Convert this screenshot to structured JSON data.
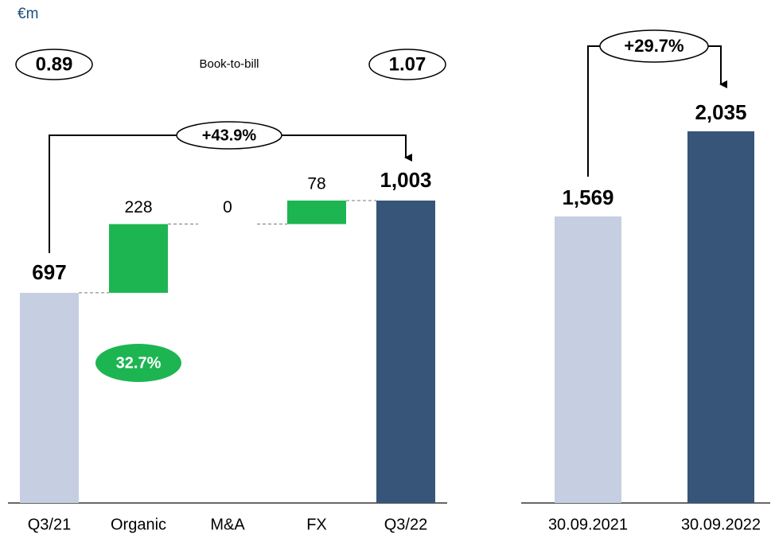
{
  "chart_data": [
    {
      "type": "waterfall",
      "unit": "€m",
      "book_to_bill": {
        "label": "Book-to-bill",
        "start": "0.89",
        "end": "1.07"
      },
      "growth_label": "+43.9%",
      "organic_growth_label": "32.7%",
      "categories": [
        "Q3/21",
        "Organic",
        "M&A",
        "FX",
        "Q3/22"
      ],
      "measure": [
        "absolute",
        "relative",
        "relative",
        "relative",
        "total"
      ],
      "values": [
        697,
        228,
        0,
        78,
        1003
      ],
      "value_labels": [
        "697",
        "228",
        "0",
        "78",
        "1,003"
      ],
      "colors": [
        "#c5cfe1",
        "#1db552",
        "#1db552",
        "#1db552",
        "#375578"
      ]
    },
    {
      "type": "bar",
      "growth_label": "+29.7%",
      "categories": [
        "30.09.2021",
        "30.09.2022"
      ],
      "values": [
        1569,
        2035
      ],
      "value_labels": [
        "1,569",
        "2,035"
      ],
      "colors": [
        "#c5cfe1",
        "#375578"
      ]
    }
  ]
}
